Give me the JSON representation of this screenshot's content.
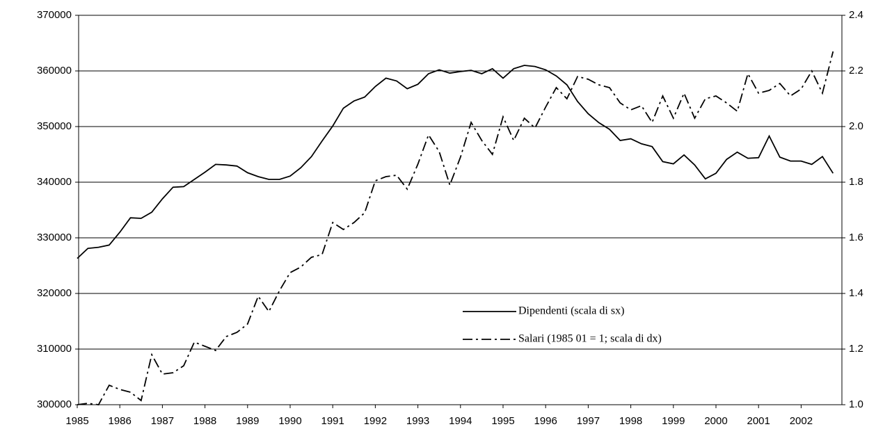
{
  "chart_data": {
    "type": "line",
    "categories": [
      "1985",
      null,
      null,
      null,
      "1986",
      null,
      null,
      null,
      "1987",
      null,
      null,
      null,
      "1988",
      null,
      null,
      null,
      "1989",
      null,
      null,
      null,
      "1990",
      null,
      null,
      null,
      "1991",
      null,
      null,
      null,
      "1992",
      null,
      null,
      null,
      "1993",
      null,
      null,
      null,
      "1994",
      null,
      null,
      null,
      "1995",
      null,
      null,
      null,
      "1996",
      null,
      null,
      null,
      "1997",
      null,
      null,
      null,
      "1998",
      null,
      null,
      null,
      "1999",
      null,
      null,
      null,
      "2000",
      null,
      null,
      null,
      "2001",
      null,
      null,
      null,
      "2002",
      null,
      null,
      null
    ],
    "series": [
      {
        "name": "Dipendenti (scala di sx)",
        "color": "#000000",
        "dash": "solid",
        "values": [
          326300,
          328100,
          328300,
          328700,
          331000,
          333600,
          333500,
          334600,
          337000,
          339100,
          339200,
          340500,
          341800,
          343200,
          343100,
          342900,
          341700,
          341000,
          340500,
          340500,
          341100,
          342600,
          344600,
          347400,
          350100,
          353300,
          354600,
          355300,
          357200,
          358700,
          358200,
          356800,
          357600,
          359500,
          360200,
          359600,
          359900,
          360100,
          359500,
          360400,
          358700,
          360400,
          361000,
          360800,
          360200,
          359100,
          357500,
          354500,
          352300,
          350700,
          349500,
          347500,
          347800,
          346900,
          346400,
          343700,
          343300,
          344900,
          343100,
          340600,
          341600,
          344100,
          345400,
          344300,
          344400,
          348300,
          344500,
          343800,
          343800,
          343200,
          344600,
          341600
        ]
      },
      {
        "name": "Salari (1985 01 = 1; scala di dx)",
        "color": "#000000",
        "dash": "dashdot",
        "axis": "y2",
        "values": [
          1.0,
          1.005,
          1.0,
          1.07,
          1.055,
          1.045,
          1.015,
          1.18,
          1.11,
          1.115,
          1.14,
          1.225,
          1.21,
          1.195,
          1.245,
          1.26,
          1.29,
          1.39,
          1.335,
          1.41,
          1.475,
          1.495,
          1.53,
          1.54,
          1.655,
          1.63,
          1.655,
          1.69,
          1.805,
          1.82,
          1.825,
          1.775,
          1.865,
          1.97,
          1.91,
          1.79,
          1.89,
          2.015,
          1.95,
          1.9,
          2.035,
          1.95,
          2.03,
          1.995,
          2.07,
          2.14,
          2.1,
          2.18,
          2.17,
          2.15,
          2.14,
          2.085,
          2.06,
          2.075,
          2.015,
          2.11,
          2.03,
          2.12,
          2.03,
          2.1,
          2.11,
          2.085,
          2.055,
          2.19,
          2.12,
          2.13,
          2.155,
          2.11,
          2.135,
          2.2,
          2.12,
          2.27
        ]
      }
    ],
    "ylim": [
      300000,
      370000
    ],
    "yticks": [
      300000,
      310000,
      320000,
      330000,
      340000,
      350000,
      360000,
      370000
    ],
    "y2lim": [
      1.0,
      2.4
    ],
    "y2ticks": [
      {
        "value": 1.0,
        "label": "1.0"
      },
      1.2,
      1.4,
      1.6,
      1.8,
      {
        "value": 2.0,
        "label": "2.0"
      },
      2.2,
      2.4
    ],
    "grid": true,
    "legend": "lower-right"
  }
}
